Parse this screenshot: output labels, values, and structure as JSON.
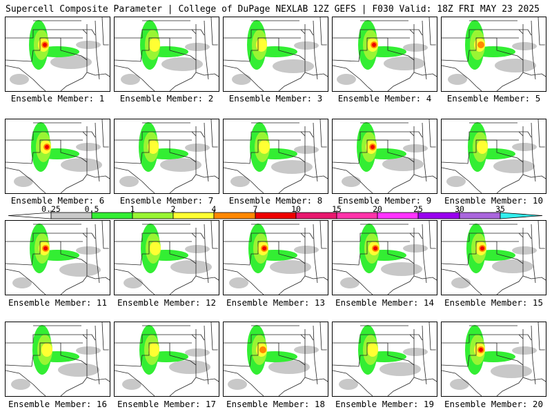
{
  "header": {
    "title_left": "Supercell Composite Parameter | College of DuPage NEXLAB",
    "title_right": "12Z GEFS | F030 Valid: 18Z FRI MAY 23 2025"
  },
  "colors": {
    "gray": "#c8c8c8",
    "green": "#33ee33",
    "lightgreen": "#99f533",
    "yellow": "#ffff33",
    "orange": "#ff8800",
    "red": "#ee0000",
    "border": "#000000",
    "state_border": "#555555"
  },
  "legend": {
    "labels": [
      "0.25",
      "0.5",
      "1",
      "2",
      "4",
      "7",
      "10",
      "15",
      "20",
      "25",
      "30",
      "35"
    ],
    "colors": [
      "#ffffff",
      "#c8c8c8",
      "#33ee33",
      "#99f533",
      "#ffff33",
      "#ff8800",
      "#ee0000",
      "#e8186e",
      "#ff33aa",
      "#ff33ff",
      "#9900ee",
      "#aa66dd",
      "#33eeee"
    ]
  },
  "members": [
    {
      "caption": "Ensemble Member: 1",
      "intensity": "red"
    },
    {
      "caption": "Ensemble Member: 2",
      "intensity": "yellow"
    },
    {
      "caption": "Ensemble Member: 3",
      "intensity": "yellow"
    },
    {
      "caption": "Ensemble Member: 4",
      "intensity": "red"
    },
    {
      "caption": "Ensemble Member: 5",
      "intensity": "orange"
    },
    {
      "caption": "Ensemble Member: 6",
      "intensity": "red"
    },
    {
      "caption": "Ensemble Member: 7",
      "intensity": "yellow"
    },
    {
      "caption": "Ensemble Member: 8",
      "intensity": "yellow"
    },
    {
      "caption": "Ensemble Member: 9",
      "intensity": "red"
    },
    {
      "caption": "Ensemble Member: 10",
      "intensity": "yellow"
    },
    {
      "caption": "Ensemble Member: 11",
      "intensity": "red"
    },
    {
      "caption": "Ensemble Member: 12",
      "intensity": "yellow"
    },
    {
      "caption": "Ensemble Member: 13",
      "intensity": "red"
    },
    {
      "caption": "Ensemble Member: 14",
      "intensity": "red"
    },
    {
      "caption": "Ensemble Member: 15",
      "intensity": "red"
    },
    {
      "caption": "Ensemble Member: 16",
      "intensity": "yellow"
    },
    {
      "caption": "Ensemble Member: 17",
      "intensity": "yellow"
    },
    {
      "caption": "Ensemble Member: 18",
      "intensity": "orange"
    },
    {
      "caption": "Ensemble Member: 19",
      "intensity": "yellow"
    },
    {
      "caption": "Ensemble Member: 20",
      "intensity": "red"
    }
  ]
}
